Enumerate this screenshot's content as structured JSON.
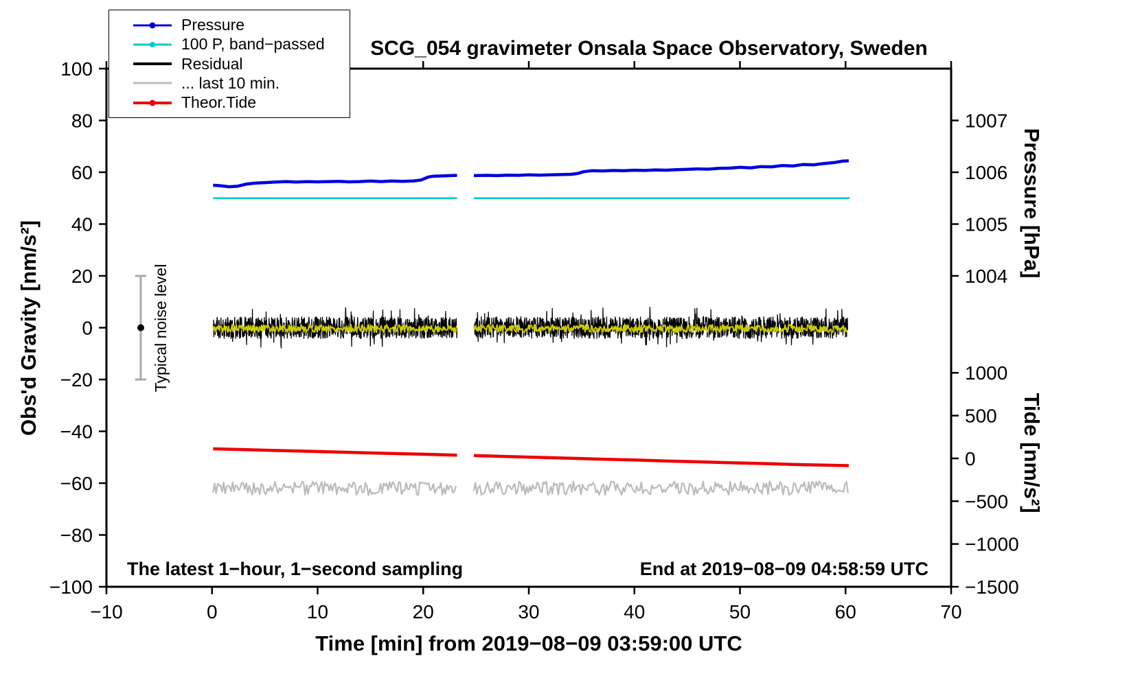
{
  "legend": {
    "items": [
      {
        "label": "Pressure",
        "color": "#0000dd",
        "dot": true
      },
      {
        "label": "100 P, band−passed",
        "color": "#00cccc",
        "dot": true
      },
      {
        "label": "Residual",
        "color": "#000000",
        "dot": false
      },
      {
        "label": "... last 10 min.",
        "color": "#bbbbbb",
        "dot": false
      },
      {
        "label": "Theor.Tide",
        "color": "#ee0000",
        "dot": true
      }
    ]
  },
  "chart_data": {
    "type": "line",
    "title": "SCG_054 gravimeter Onsala Space Observatory, Sweden",
    "xlabel": "Time [min] from 2019−08−09 03:59:00 UTC",
    "ylabel_left": "Obs'd Gravity [nm/s²]",
    "ylabel_right_top": "Pressure [hPa]",
    "ylabel_right_bottom": "Tide [nm/s²]",
    "annotation_bottom_left": "The latest 1−hour, 1−second sampling",
    "annotation_bottom_right": "End at 2019−08−09 04:58:59 UTC",
    "gap_minutes": [
      23.2,
      24.8
    ],
    "x_axis": {
      "min": -10,
      "max": 70,
      "ticks": [
        {
          "v": -10,
          "label": "−10"
        },
        {
          "v": 0,
          "label": "0"
        },
        {
          "v": 10,
          "label": "10"
        },
        {
          "v": 20,
          "label": "20"
        },
        {
          "v": 30,
          "label": "30"
        },
        {
          "v": 40,
          "label": "40"
        },
        {
          "v": 50,
          "label": "50"
        },
        {
          "v": 60,
          "label": "60"
        },
        {
          "v": 70,
          "label": "70"
        }
      ]
    },
    "y_axis": {
      "min": -100,
      "max": 100,
      "ticks": [
        {
          "v": 100,
          "label": "100"
        },
        {
          "v": 80,
          "label": "80"
        },
        {
          "v": 60,
          "label": "60"
        },
        {
          "v": 40,
          "label": "40"
        },
        {
          "v": 20,
          "label": "20"
        },
        {
          "v": 0,
          "label": "0"
        },
        {
          "v": -20,
          "label": "−20"
        },
        {
          "v": -40,
          "label": "−40"
        },
        {
          "v": -60,
          "label": "−60"
        },
        {
          "v": -80,
          "label": "−80"
        },
        {
          "v": -100,
          "label": "−100"
        }
      ]
    },
    "pressure_axis": {
      "unit": "hPa",
      "value_ref": 1004,
      "gravity_ref": 20,
      "gravity_per_unit": 20,
      "ticks": [
        {
          "v": 1007,
          "label": "1007"
        },
        {
          "v": 1006,
          "label": "1006"
        },
        {
          "v": 1005,
          "label": "1005"
        },
        {
          "v": 1004,
          "label": "1004"
        }
      ]
    },
    "tide_axis": {
      "unit": "nm/s²",
      "value_ref": 0,
      "gravity_ref": -50.45,
      "gravity_per_unit": 0.033036,
      "ticks": [
        {
          "v": 1000,
          "label": "1000"
        },
        {
          "v": 500,
          "label": "500"
        },
        {
          "v": 0,
          "label": "0"
        },
        {
          "v": -500,
          "label": "−500"
        },
        {
          "v": -1000,
          "label": "−1000"
        },
        {
          "v": -1500,
          "label": "−1500"
        }
      ]
    },
    "noise_bar": {
      "x": -6.75,
      "low": -20,
      "high": 20,
      "center": 0,
      "label": "Typical noise level",
      "color": "#aaaaaa"
    },
    "series": [
      {
        "name": "bandpassed-pressure",
        "color": "#00cccc",
        "width": 2.5,
        "scale": "gravity",
        "points_segments": [
          [
            [
              0.1,
              50
            ],
            [
              23.2,
              50
            ]
          ],
          [
            [
              24.8,
              50
            ],
            [
              60.4,
              50
            ]
          ]
        ]
      },
      {
        "name": "pressure",
        "color": "#0000dd",
        "width": 4.5,
        "scale": "pressure",
        "points_segments": [
          [
            [
              0.1,
              1005.75
            ],
            [
              0.8,
              1005.74
            ],
            [
              1.6,
              1005.72
            ],
            [
              2.4,
              1005.73
            ],
            [
              3.2,
              1005.77
            ],
            [
              4,
              1005.79
            ],
            [
              5,
              1005.8
            ],
            [
              6,
              1005.81
            ],
            [
              7,
              1005.82
            ],
            [
              8,
              1005.81
            ],
            [
              9,
              1005.82
            ],
            [
              10,
              1005.815
            ],
            [
              11,
              1005.82
            ],
            [
              12,
              1005.825
            ],
            [
              13,
              1005.815
            ],
            [
              14,
              1005.82
            ],
            [
              15,
              1005.83
            ],
            [
              16,
              1005.82
            ],
            [
              17,
              1005.83
            ],
            [
              18,
              1005.825
            ],
            [
              19,
              1005.83
            ],
            [
              19.8,
              1005.85
            ],
            [
              20.5,
              1005.91
            ],
            [
              21,
              1005.925
            ],
            [
              22,
              1005.93
            ],
            [
              23.2,
              1005.94
            ]
          ],
          [
            [
              24.8,
              1005.935
            ],
            [
              26,
              1005.94
            ],
            [
              27,
              1005.935
            ],
            [
              28,
              1005.945
            ],
            [
              29,
              1005.94
            ],
            [
              30,
              1005.95
            ],
            [
              31,
              1005.945
            ],
            [
              32,
              1005.95
            ],
            [
              33,
              1005.955
            ],
            [
              34,
              1005.96
            ],
            [
              34.6,
              1005.975
            ],
            [
              35.2,
              1006.01
            ],
            [
              36,
              1006.03
            ],
            [
              37,
              1006.025
            ],
            [
              38,
              1006.035
            ],
            [
              39,
              1006.03
            ],
            [
              40,
              1006.04
            ],
            [
              41,
              1006.035
            ],
            [
              42,
              1006.045
            ],
            [
              43,
              1006.04
            ],
            [
              44,
              1006.05
            ],
            [
              45,
              1006.055
            ],
            [
              46,
              1006.065
            ],
            [
              47,
              1006.06
            ],
            [
              48,
              1006.075
            ],
            [
              49,
              1006.08
            ],
            [
              50,
              1006.095
            ],
            [
              51,
              1006.085
            ],
            [
              52,
              1006.11
            ],
            [
              53,
              1006.105
            ],
            [
              54,
              1006.13
            ],
            [
              55,
              1006.12
            ],
            [
              56,
              1006.15
            ],
            [
              57,
              1006.145
            ],
            [
              58,
              1006.17
            ],
            [
              59,
              1006.19
            ],
            [
              59.7,
              1006.215
            ],
            [
              60.3,
              1006.22
            ]
          ]
        ]
      },
      {
        "name": "residual",
        "color": "#000000",
        "width": 1.3,
        "scale": "gravity",
        "noise": {
          "mean": 0,
          "amplitude": 4.2,
          "spike_prob": 0.06,
          "points_per_min": 40,
          "seed": 11,
          "segments_x": [
            [
              0.1,
              23.2
            ],
            [
              24.8,
              60.2
            ]
          ]
        }
      },
      {
        "name": "residual-filtered",
        "color": "#cccc00",
        "width": 2,
        "scale": "gravity",
        "noise": {
          "mean": -0.3,
          "amplitude": 1.5,
          "spike_prob": 0,
          "points_per_min": 15,
          "seed": 5,
          "segments_x": [
            [
              0.1,
              23.2
            ],
            [
              24.8,
              60.2
            ]
          ]
        }
      },
      {
        "name": "last-10-min",
        "color": "#bbbbbb",
        "width": 2.2,
        "scale": "gravity",
        "noise": {
          "mean": -62,
          "amplitude": 2.7,
          "spike_prob": 0,
          "points_per_min": 7,
          "seed": 9,
          "segments_x": [
            [
              0.1,
              23.2
            ],
            [
              24.8,
              60.3
            ]
          ]
        }
      },
      {
        "name": "theor-tide",
        "color": "#ee0000",
        "width": 4.5,
        "scale": "tide",
        "points_segments": [
          [
            [
              0.1,
              112
            ],
            [
              3,
              103
            ],
            [
              6,
              93
            ],
            [
              9,
              84
            ],
            [
              12,
              74
            ],
            [
              15,
              64
            ],
            [
              18,
              55
            ],
            [
              21,
              45
            ],
            [
              23.2,
              38
            ]
          ],
          [
            [
              24.8,
              33
            ],
            [
              28,
              22
            ],
            [
              31,
              12
            ],
            [
              34,
              2
            ],
            [
              37,
              -9
            ],
            [
              40,
              -19
            ],
            [
              43,
              -30
            ],
            [
              46,
              -40
            ],
            [
              49,
              -50
            ],
            [
              52,
              -60
            ],
            [
              55,
              -70
            ],
            [
              58,
              -79
            ],
            [
              60.3,
              -85
            ]
          ]
        ]
      }
    ]
  }
}
